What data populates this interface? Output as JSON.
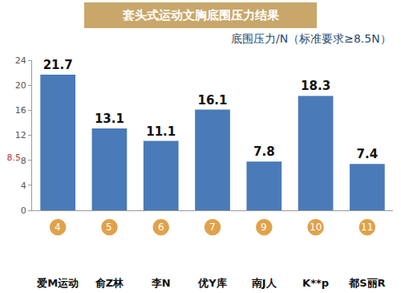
{
  "chart_data": {
    "type": "bar",
    "title": "套头式运动文胸底围压力结果",
    "subtitle": "底围压力/N（标准要求≥8.5N）",
    "categories": [
      "爱M运动",
      "俞Z林",
      "李N",
      "优Y库",
      "南J人",
      "K**p",
      "都S丽R"
    ],
    "sample_numbers": [
      "4",
      "5",
      "6",
      "7",
      "9",
      "10",
      "11"
    ],
    "values": [
      21.7,
      13.1,
      11.1,
      16.1,
      7.8,
      18.3,
      7.4
    ],
    "color": "#4a7ab8",
    "ylim": [
      0,
      24
    ],
    "yticks": [
      0,
      4,
      8,
      8.5,
      12,
      16,
      20,
      24
    ],
    "grid": false,
    "data_labels": true
  }
}
